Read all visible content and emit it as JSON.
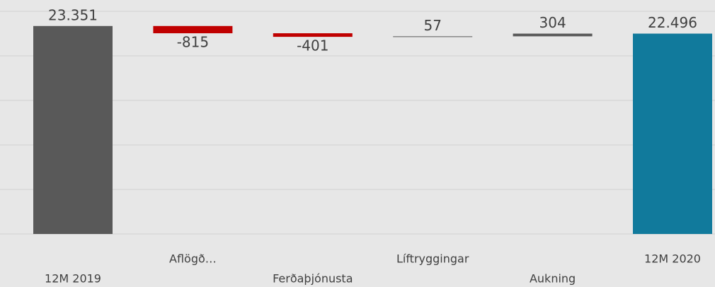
{
  "chart_data": {
    "type": "waterfall",
    "categories": [
      "12M 2019",
      "Aflögð…",
      "Ferðaþjónusta",
      "Líftryggingar",
      "Aukning",
      "12M 2020"
    ],
    "values": [
      23351,
      -815,
      -401,
      57,
      304,
      22496
    ],
    "value_labels": [
      "23.351",
      "-815",
      "-401",
      "57",
      "304",
      "22.496"
    ],
    "measure": [
      "total",
      "relative",
      "relative",
      "relative",
      "relative",
      "total"
    ],
    "colors": [
      "#595959",
      "#c00000",
      "#c00000",
      "#595959",
      "#595959",
      "#117a9c"
    ],
    "ylim": [
      0,
      26000
    ],
    "yticks": [
      0,
      5000,
      10000,
      15000,
      20000,
      25000
    ],
    "grid": true
  }
}
